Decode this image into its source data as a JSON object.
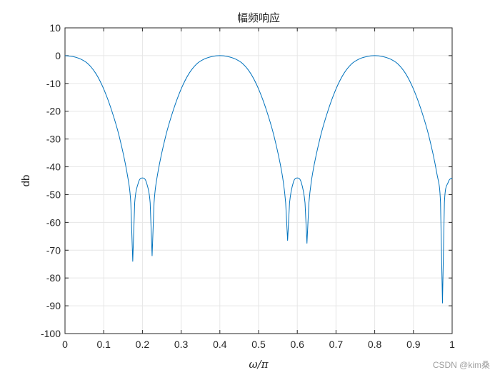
{
  "chart_data": {
    "type": "line",
    "title": "幅频响应",
    "xlabel": "ω/π",
    "ylabel": "db",
    "xlim": [
      0,
      1
    ],
    "ylim": [
      -100,
      10
    ],
    "x_ticks": [
      0,
      0.1,
      0.2,
      0.3,
      0.4,
      0.5,
      0.6,
      0.7,
      0.8,
      0.9,
      1
    ],
    "x_tick_labels": [
      "0",
      "0.1",
      "0.2",
      "0.3",
      "0.4",
      "0.5",
      "0.6",
      "0.7",
      "0.8",
      "0.9",
      "1"
    ],
    "y_ticks": [
      10,
      0,
      -10,
      -20,
      -30,
      -40,
      -50,
      -60,
      -70,
      -80,
      -90,
      -100
    ],
    "y_tick_labels": [
      "10",
      "0",
      "-10",
      "-20",
      "-30",
      "-40",
      "-50",
      "-60",
      "-70",
      "-80",
      "-90",
      "-100"
    ],
    "grid": true,
    "line_color": "#0072BD",
    "series": [
      {
        "x": [
          0,
          0.02,
          0.04,
          0.06,
          0.08,
          0.1,
          0.12,
          0.14,
          0.16,
          0.17,
          0.175,
          0.18,
          0.19,
          0.2,
          0.21,
          0.22,
          0.225,
          0.23,
          0.24,
          0.26,
          0.28,
          0.3,
          0.32,
          0.34,
          0.36,
          0.38,
          0.4,
          0.42,
          0.44,
          0.46,
          0.48,
          0.5,
          0.52,
          0.54,
          0.56,
          0.57,
          0.575,
          0.58,
          0.59,
          0.6,
          0.61,
          0.62,
          0.625,
          0.63,
          0.64,
          0.66,
          0.68,
          0.7,
          0.72,
          0.74,
          0.76,
          0.78,
          0.8,
          0.82,
          0.84,
          0.86,
          0.88,
          0.9,
          0.92,
          0.94,
          0.96,
          0.97,
          0.975,
          0.98,
          0.99,
          1.0
        ],
        "y": [
          0,
          -0.3,
          -1.2,
          -3,
          -6.5,
          -12,
          -19.5,
          -29,
          -42,
          -53,
          -74,
          -53,
          -45.5,
          -44,
          -45.5,
          -53,
          -72,
          -53,
          -42,
          -29,
          -19.5,
          -12,
          -6.5,
          -3,
          -1.2,
          -0.3,
          0,
          -0.3,
          -1.2,
          -3,
          -6.5,
          -12,
          -19.5,
          -29,
          -42,
          -53,
          -66.5,
          -53,
          -45.5,
          -44,
          -45.5,
          -53,
          -67.5,
          -53,
          -42,
          -29,
          -19.5,
          -12,
          -6.5,
          -3,
          -1.2,
          -0.3,
          0,
          -0.3,
          -1.2,
          -3,
          -6.5,
          -12,
          -19.5,
          -29,
          -42,
          -53,
          -89,
          -53,
          -45.5,
          -44
        ]
      }
    ]
  },
  "watermark": "CSDN @kim桑"
}
